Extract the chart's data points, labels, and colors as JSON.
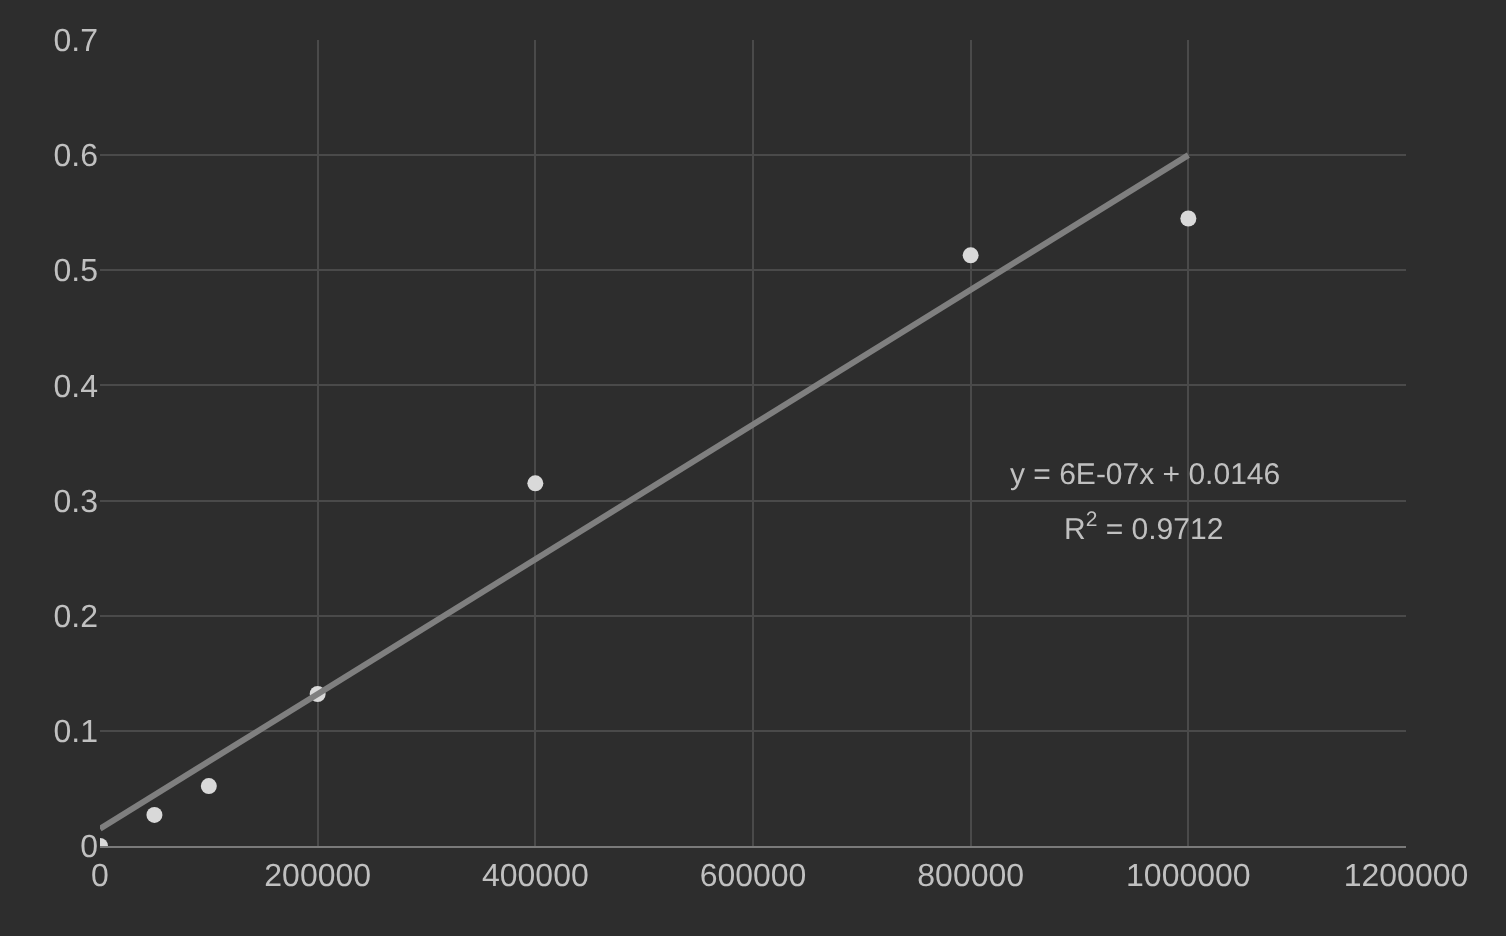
{
  "chart_data": {
    "type": "scatter",
    "xlim": [
      0,
      1200000
    ],
    "xticks": [
      0,
      200000,
      400000,
      600000,
      800000,
      1000000,
      1200000
    ],
    "ylim": [
      0,
      0.7
    ],
    "yticks": [
      0,
      0.1,
      0.2,
      0.3,
      0.4,
      0.5,
      0.6,
      0.7
    ],
    "grid": true,
    "series": [
      {
        "color": "#d9d9d9",
        "marker": "circle",
        "x": [
          0,
          50000,
          100000,
          200000,
          400000,
          800000,
          1000000
        ],
        "values": [
          0,
          0.027,
          0.052,
          0.132,
          0.315,
          0.513,
          0.545
        ]
      },
      {
        "type": "line",
        "color": "#7f7f7f",
        "x": [
          0,
          1000000
        ],
        "values": [
          0.015,
          0.6
        ]
      }
    ],
    "annotations": [
      "y = 6E-07x + 0.0146",
      "R$^{2}$ = 0.9712"
    ]
  }
}
